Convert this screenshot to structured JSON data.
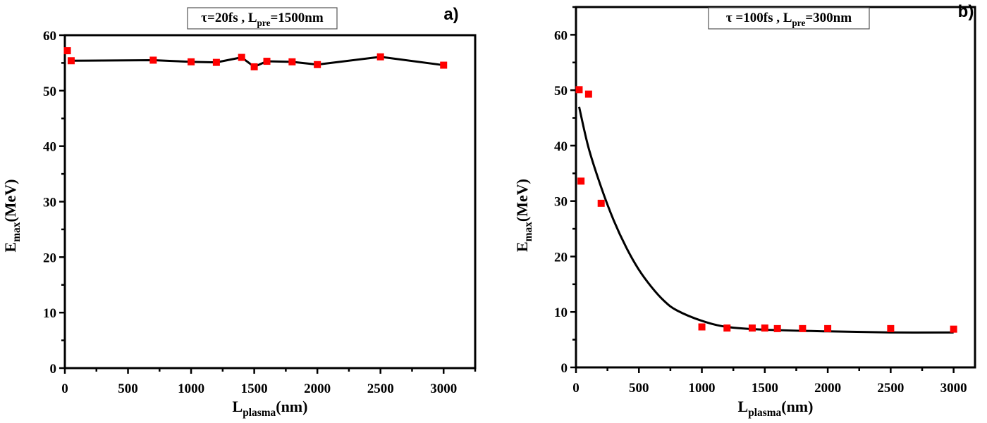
{
  "chart_data": [
    {
      "type": "scatter",
      "panel_label": "a)",
      "title": {
        "main": "τ=20fs , L",
        "sub": "pre",
        "rest": "=1500nm"
      },
      "xlabel": {
        "main": "L",
        "sub": "plasma",
        "rest": "(nm)"
      },
      "ylabel": {
        "main": "E",
        "sub": "max",
        "rest": "(MeV)"
      },
      "xlim": [
        0,
        3250
      ],
      "ylim": [
        0,
        60
      ],
      "xticks": [
        "0",
        "500",
        "1000",
        "1500",
        "2000",
        "2500",
        "3000"
      ],
      "yticks": [
        "0",
        "10",
        "20",
        "30",
        "40",
        "50",
        "60"
      ],
      "grid": false,
      "marker_color": "#ff0000",
      "line_color": "#000000",
      "points": {
        "x": [
          20,
          50,
          700,
          1000,
          1200,
          1400,
          1500,
          1600,
          1800,
          2000,
          2500,
          3000
        ],
        "y": [
          57.2,
          55.4,
          55.5,
          55.2,
          55.1,
          56.0,
          54.3,
          55.3,
          55.2,
          54.7,
          56.1,
          54.6
        ]
      },
      "line": {
        "x": [
          50,
          700,
          1000,
          1200,
          1400,
          1500,
          1600,
          1800,
          2000,
          2500,
          3000
        ],
        "y": [
          55.4,
          55.5,
          55.2,
          55.1,
          56.0,
          54.3,
          55.3,
          55.2,
          54.7,
          56.1,
          54.6
        ]
      }
    },
    {
      "type": "scatter",
      "panel_label": "b)",
      "title": {
        "main": "τ =100fs , L",
        "sub": "pre",
        "rest": "=300nm"
      },
      "xlabel": {
        "main": "L",
        "sub": "plasma",
        "rest": "(nm)"
      },
      "ylabel": {
        "main": "E",
        "sub": "max",
        "rest": "(MeV)"
      },
      "xlim": [
        0,
        3170
      ],
      "ylim": [
        0,
        65
      ],
      "xticks": [
        "0",
        "500",
        "1000",
        "1500",
        "2000",
        "2500",
        "3000"
      ],
      "yticks": [
        "0",
        "10",
        "20",
        "30",
        "40",
        "50",
        "60"
      ],
      "grid": false,
      "marker_color": "#ff0000",
      "line_color": "#000000",
      "points": {
        "x": [
          25,
          40,
          100,
          200,
          1000,
          1200,
          1400,
          1500,
          1600,
          1800,
          2000,
          2500,
          3000
        ],
        "y": [
          50.1,
          33.6,
          49.3,
          29.6,
          7.3,
          7.1,
          7.1,
          7.1,
          7.0,
          7.0,
          7.0,
          7.0,
          6.9
        ]
      },
      "line": {
        "x": [
          25,
          100,
          200,
          300,
          400,
          500,
          600,
          700,
          800,
          1000,
          1200,
          1500,
          2000,
          2500,
          3000
        ],
        "y": [
          47.0,
          39.6,
          32.5,
          26.5,
          21.6,
          17.6,
          14.5,
          12.0,
          10.3,
          8.4,
          7.3,
          6.8,
          6.5,
          6.3,
          6.3
        ]
      }
    }
  ]
}
